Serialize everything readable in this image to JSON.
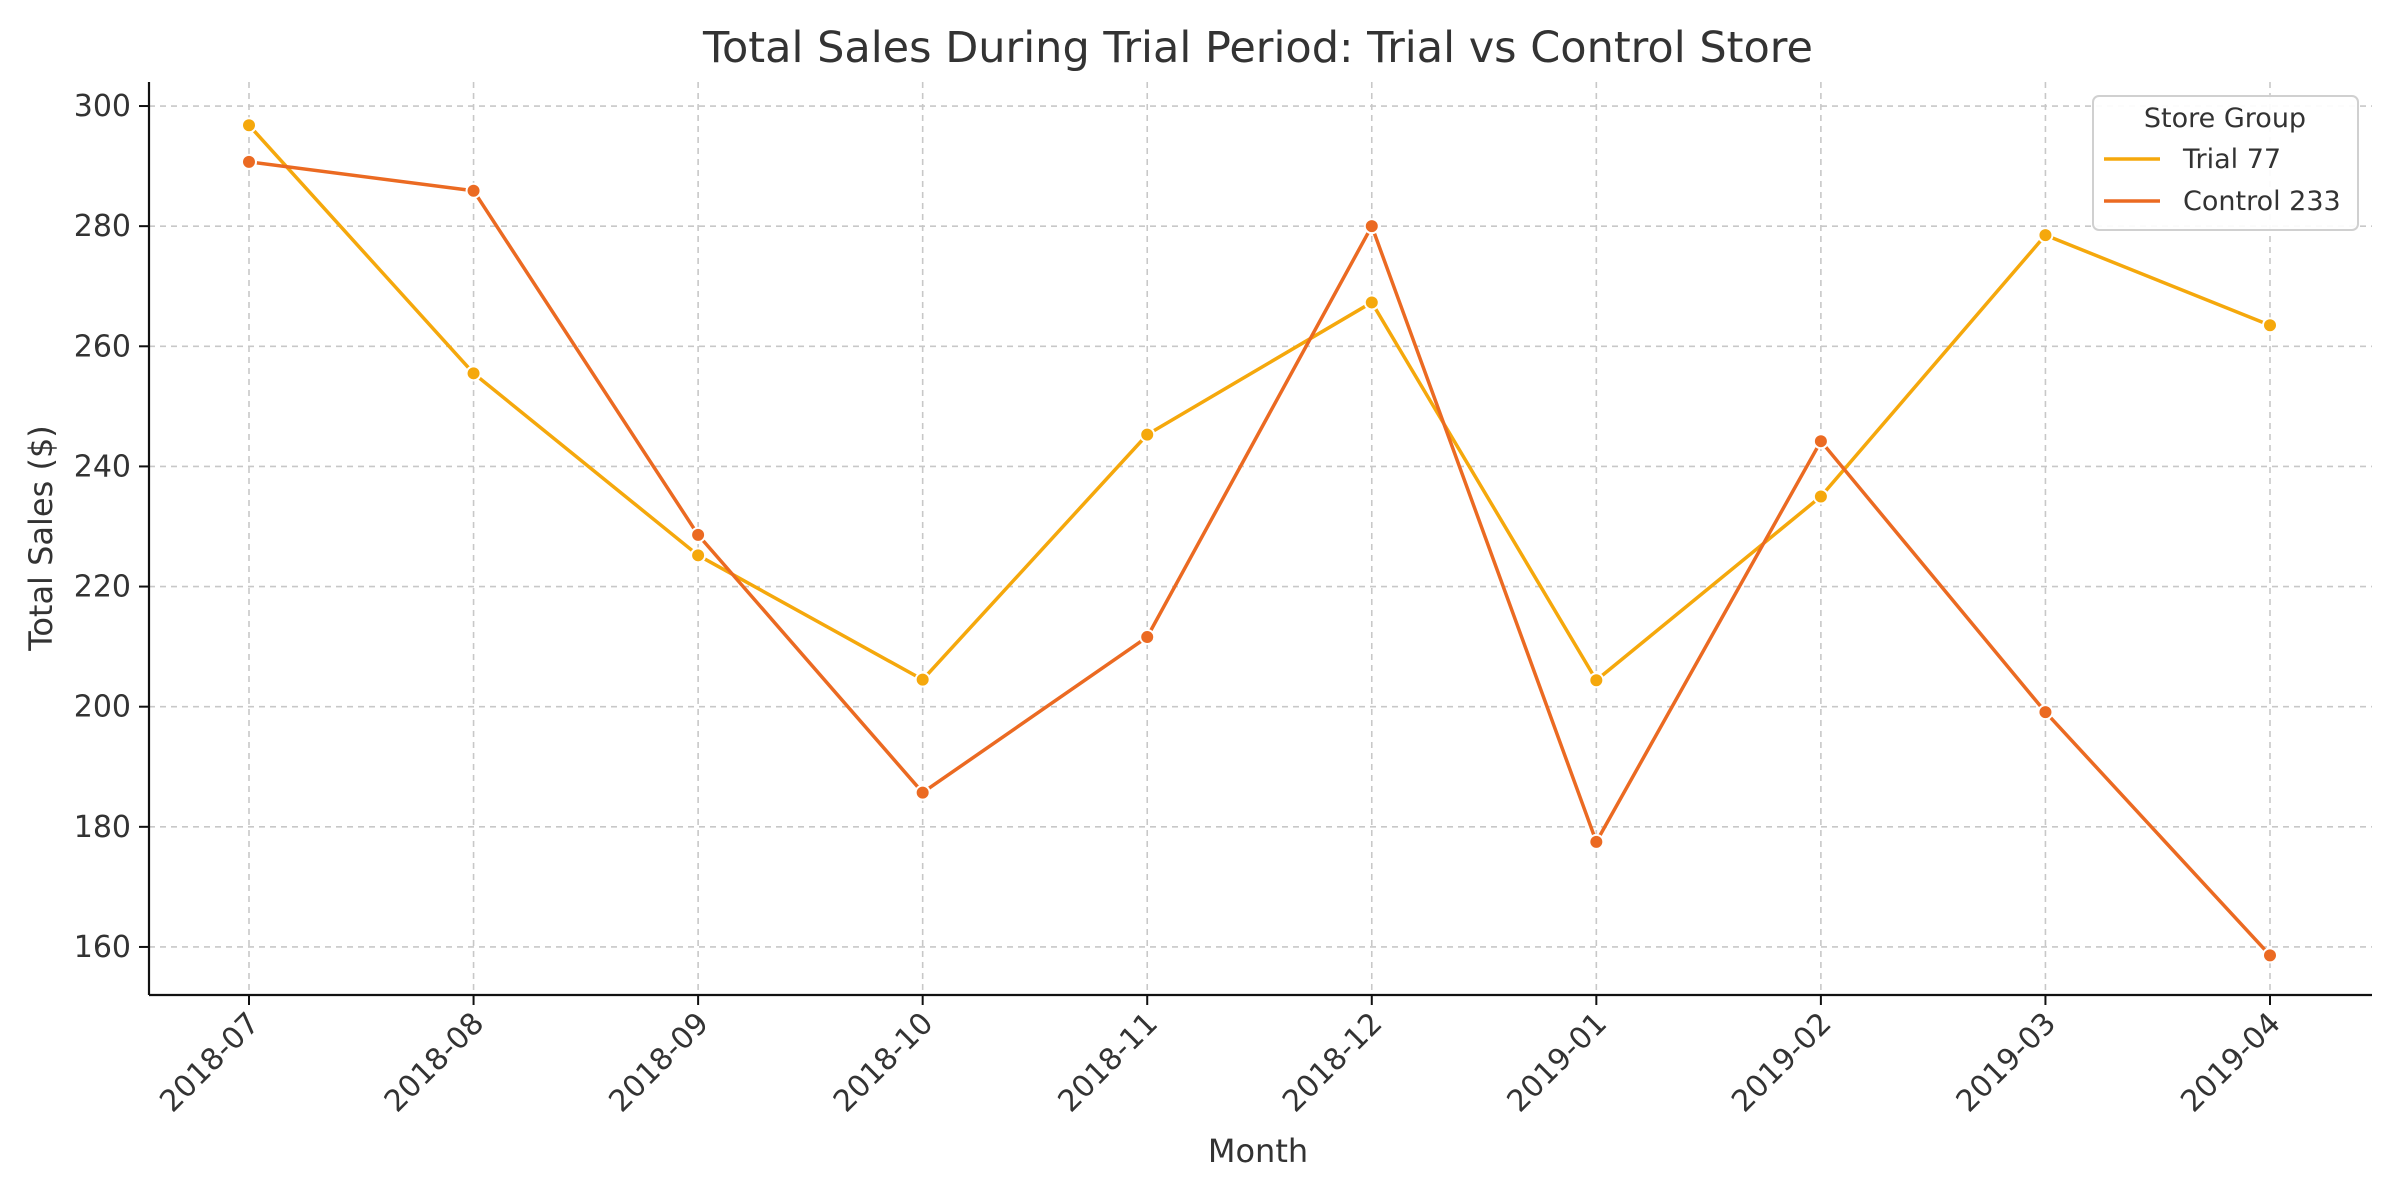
{
  "chart_data": {
    "type": "line",
    "title": "Total Sales During Trial Period: Trial vs Control Store",
    "xlabel": "Month",
    "ylabel": "Total Sales ($)",
    "categories": [
      "2018-07",
      "2018-08",
      "2018-09",
      "2018-10",
      "2018-11",
      "2018-12",
      "2019-01",
      "2019-02",
      "2019-03",
      "2019-04"
    ],
    "ylim": [
      152,
      304
    ],
    "yticks": [
      160,
      180,
      200,
      220,
      240,
      260,
      280,
      300
    ],
    "grid": true,
    "legend": {
      "title": "Store Group",
      "placement": "top-right"
    },
    "series": [
      {
        "name": "Trial 77",
        "color": "#F5A80C",
        "values": [
          296.8,
          255.5,
          225.2,
          204.5,
          245.3,
          267.3,
          204.4,
          235.0,
          278.5,
          263.5
        ]
      },
      {
        "name": "Control 233",
        "color": "#EB6A22",
        "values": [
          290.7,
          285.9,
          228.6,
          185.7,
          211.6,
          280.0,
          177.5,
          244.2,
          199.1,
          158.6
        ]
      }
    ]
  }
}
